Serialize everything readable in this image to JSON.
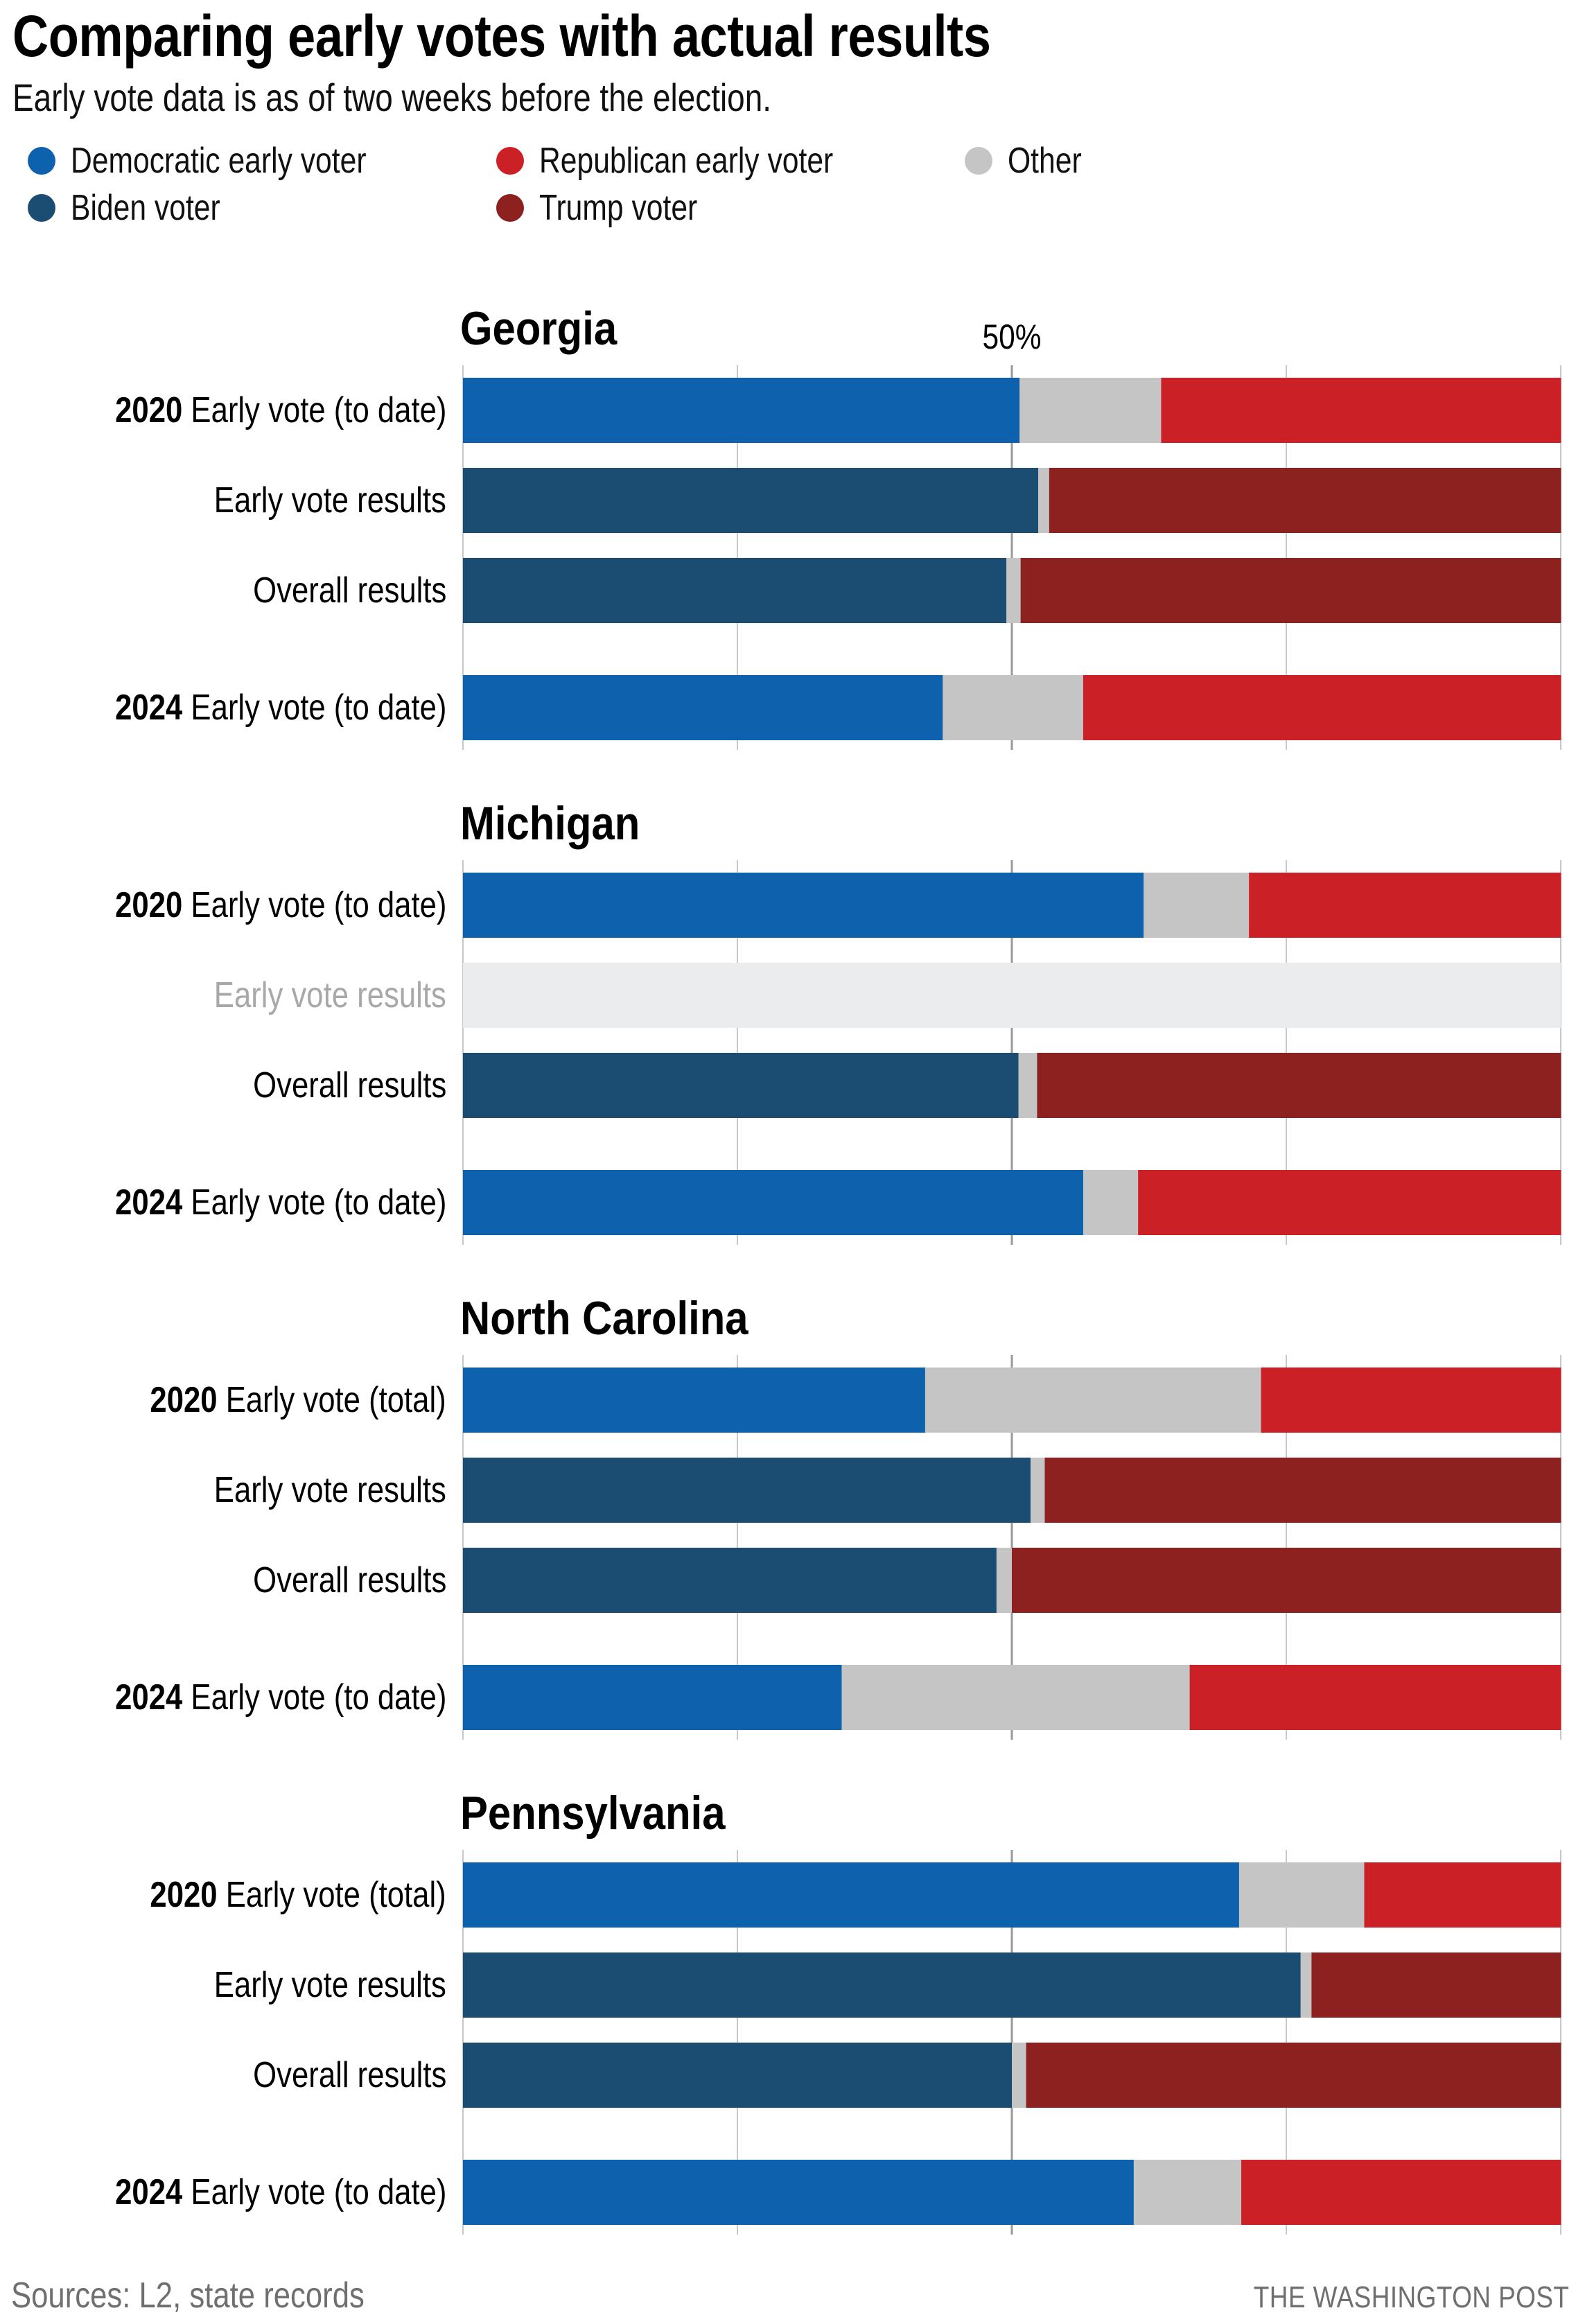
{
  "header": {
    "title": "Comparing early votes with actual results",
    "subtitle": "Early vote data is as of two weeks before the election."
  },
  "legend": [
    {
      "key": "dem",
      "label": "Democratic early voter",
      "color": "#0e62ad"
    },
    {
      "key": "rep",
      "label": "Republican early voter",
      "color": "#cc2027"
    },
    {
      "key": "other",
      "label": "Other",
      "color": "#c5c5c5"
    },
    {
      "key": "biden",
      "label": "Biden voter",
      "color": "#1b4d72"
    },
    {
      "key": "trump",
      "label": "Trump voter",
      "color": "#8c2120"
    }
  ],
  "colors": {
    "no_data": "#ebecee",
    "gridline": "#c8c8c8",
    "midline": "#999999",
    "muted_label": "#a8a8a8"
  },
  "footer": {
    "source": "Sources: L2, state records",
    "brand": "THE WASHINGTON POST"
  },
  "chart_data": {
    "type": "bar",
    "orientation": "horizontal",
    "stacked": true,
    "normalized_to": 100,
    "title": "Comparing early votes with actual results",
    "subtitle": "Early vote data is as of two weeks before the election.",
    "xlabel": "",
    "ylabel": "",
    "xlim": [
      0,
      100
    ],
    "gridlines_at": [
      0,
      25,
      50,
      75,
      100
    ],
    "tick_labels": [
      {
        "value": 50,
        "label": "50%"
      }
    ],
    "grid": true,
    "legend_position": "top-left",
    "units": "percent of votes",
    "panels": [
      {
        "state": "Georgia",
        "show_tick_label": true,
        "rows": [
          {
            "year": "2020",
            "label": "Early vote (to date)",
            "kind": "early",
            "segments": {
              "dem": 50.7,
              "other": 12.9,
              "rep": 36.4
            }
          },
          {
            "year": "",
            "label": "Early vote results",
            "kind": "result",
            "segments": {
              "biden": 52.4,
              "other": 1.0,
              "trump": 46.6
            }
          },
          {
            "year": "",
            "label": "Overall results",
            "kind": "result",
            "segments": {
              "biden": 49.5,
              "other": 1.3,
              "trump": 49.2
            }
          },
          {
            "year": "2024",
            "label": "Early vote (to date)",
            "kind": "early",
            "segments": {
              "dem": 43.7,
              "other": 12.8,
              "rep": 43.5
            }
          }
        ]
      },
      {
        "state": "Michigan",
        "show_tick_label": false,
        "rows": [
          {
            "year": "2020",
            "label": "Early vote (to date)",
            "kind": "early",
            "segments": {
              "dem": 62.0,
              "other": 9.6,
              "rep": 28.4
            }
          },
          {
            "year": "",
            "label": "Early vote results",
            "kind": "no_data",
            "segments": null
          },
          {
            "year": "",
            "label": "Overall results",
            "kind": "result",
            "segments": {
              "biden": 50.6,
              "other": 1.7,
              "trump": 47.7
            }
          },
          {
            "year": "2024",
            "label": "Early vote (to date)",
            "kind": "early",
            "segments": {
              "dem": 56.5,
              "other": 5.0,
              "rep": 38.5
            }
          }
        ]
      },
      {
        "state": "North Carolina",
        "show_tick_label": false,
        "rows": [
          {
            "year": "2020",
            "label": "Early vote (total)",
            "kind": "early",
            "segments": {
              "dem": 42.1,
              "other": 30.6,
              "rep": 27.3
            }
          },
          {
            "year": "",
            "label": "Early vote results",
            "kind": "result",
            "segments": {
              "biden": 51.7,
              "other": 1.3,
              "trump": 47.0
            }
          },
          {
            "year": "",
            "label": "Overall results",
            "kind": "result",
            "segments": {
              "biden": 48.6,
              "other": 1.4,
              "trump": 50.0
            }
          },
          {
            "year": "2024",
            "label": "Early vote (to date)",
            "kind": "early",
            "segments": {
              "dem": 34.5,
              "other": 31.7,
              "rep": 33.8
            }
          }
        ]
      },
      {
        "state": "Pennsylvania",
        "show_tick_label": false,
        "rows": [
          {
            "year": "2020",
            "label": "Early vote (total)",
            "kind": "early",
            "segments": {
              "dem": 70.7,
              "other": 11.4,
              "rep": 17.9
            }
          },
          {
            "year": "",
            "label": "Early vote results",
            "kind": "result",
            "segments": {
              "biden": 76.3,
              "other": 1.0,
              "trump": 22.7
            }
          },
          {
            "year": "",
            "label": "Overall results",
            "kind": "result",
            "segments": {
              "biden": 50.0,
              "other": 1.3,
              "trump": 48.7
            }
          },
          {
            "year": "2024",
            "label": "Early vote (to date)",
            "kind": "early",
            "segments": {
              "dem": 61.1,
              "other": 9.8,
              "rep": 29.1
            }
          }
        ]
      }
    ]
  }
}
